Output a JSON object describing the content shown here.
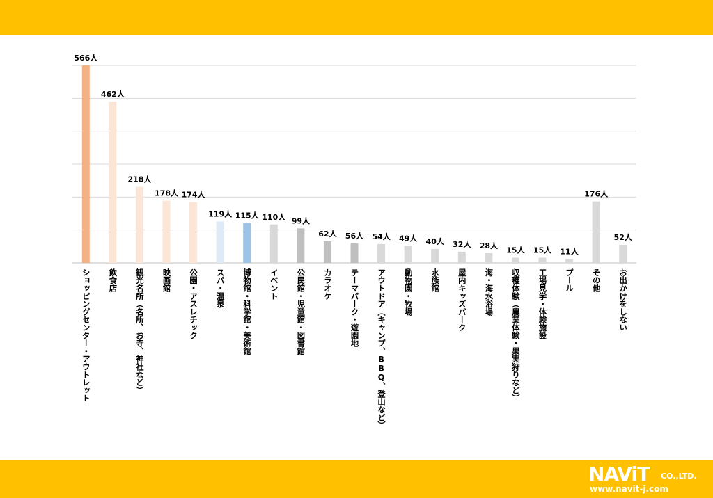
{
  "colors": {
    "band": "#FFC000",
    "grid": "#D9D9D9",
    "axis": "#BFBFBF"
  },
  "logo": {
    "brand": "NAViT",
    "suffix": "CO.,LTD.",
    "url": "www.navit-j.com"
  },
  "chart_data": {
    "type": "bar",
    "unit": "人",
    "ylim": [
      0,
      566
    ],
    "grid": true,
    "categories": [
      "ショッピングセンター・アウトレット",
      "飲食店",
      "観光名所（名所、お寺、神社など）",
      "映画館",
      "公園・アスレチック",
      "スパ・温泉",
      "博物館・科学館・美術館",
      "イベント",
      "公民館・児童館・図書館",
      "カラオケ",
      "テーマパーク・遊園地",
      "アウトドア（キャンプ、BBQ、登山など）",
      "動物園・牧場",
      "水族館",
      "屋内キッズパーク",
      "海・海水浴場",
      "収穫体験（農業体験・果実狩りなど）",
      "工場見学・体験施設",
      "プール",
      "その他",
      "お出かけをしない"
    ],
    "values": [
      566,
      462,
      218,
      178,
      174,
      119,
      115,
      110,
      99,
      62,
      56,
      54,
      49,
      40,
      32,
      28,
      15,
      15,
      11,
      176,
      52
    ],
    "labels": [
      "566人",
      "462人",
      "218人",
      "178人",
      "174人",
      "119人",
      "115人",
      "110人",
      "99人",
      "62人",
      "56人",
      "54人",
      "49人",
      "40人",
      "32人",
      "28人",
      "15人",
      "15人",
      "11人",
      "176人",
      "52人"
    ],
    "bar_colors": [
      "#F4B183",
      "#FBE5D6",
      "#FBE5D6",
      "#FBE5D6",
      "#FBE5D6",
      "#DEEBF7",
      "#9DC3E6",
      "#D9D9D9",
      "#BFBFBF",
      "#BFBFBF",
      "#BFBFBF",
      "#D9D9D9",
      "#D9D9D9",
      "#D9D9D9",
      "#D9D9D9",
      "#D9D9D9",
      "#D9D9D9",
      "#D9D9D9",
      "#D9D9D9",
      "#D9D9D9",
      "#D9D9D9"
    ]
  }
}
